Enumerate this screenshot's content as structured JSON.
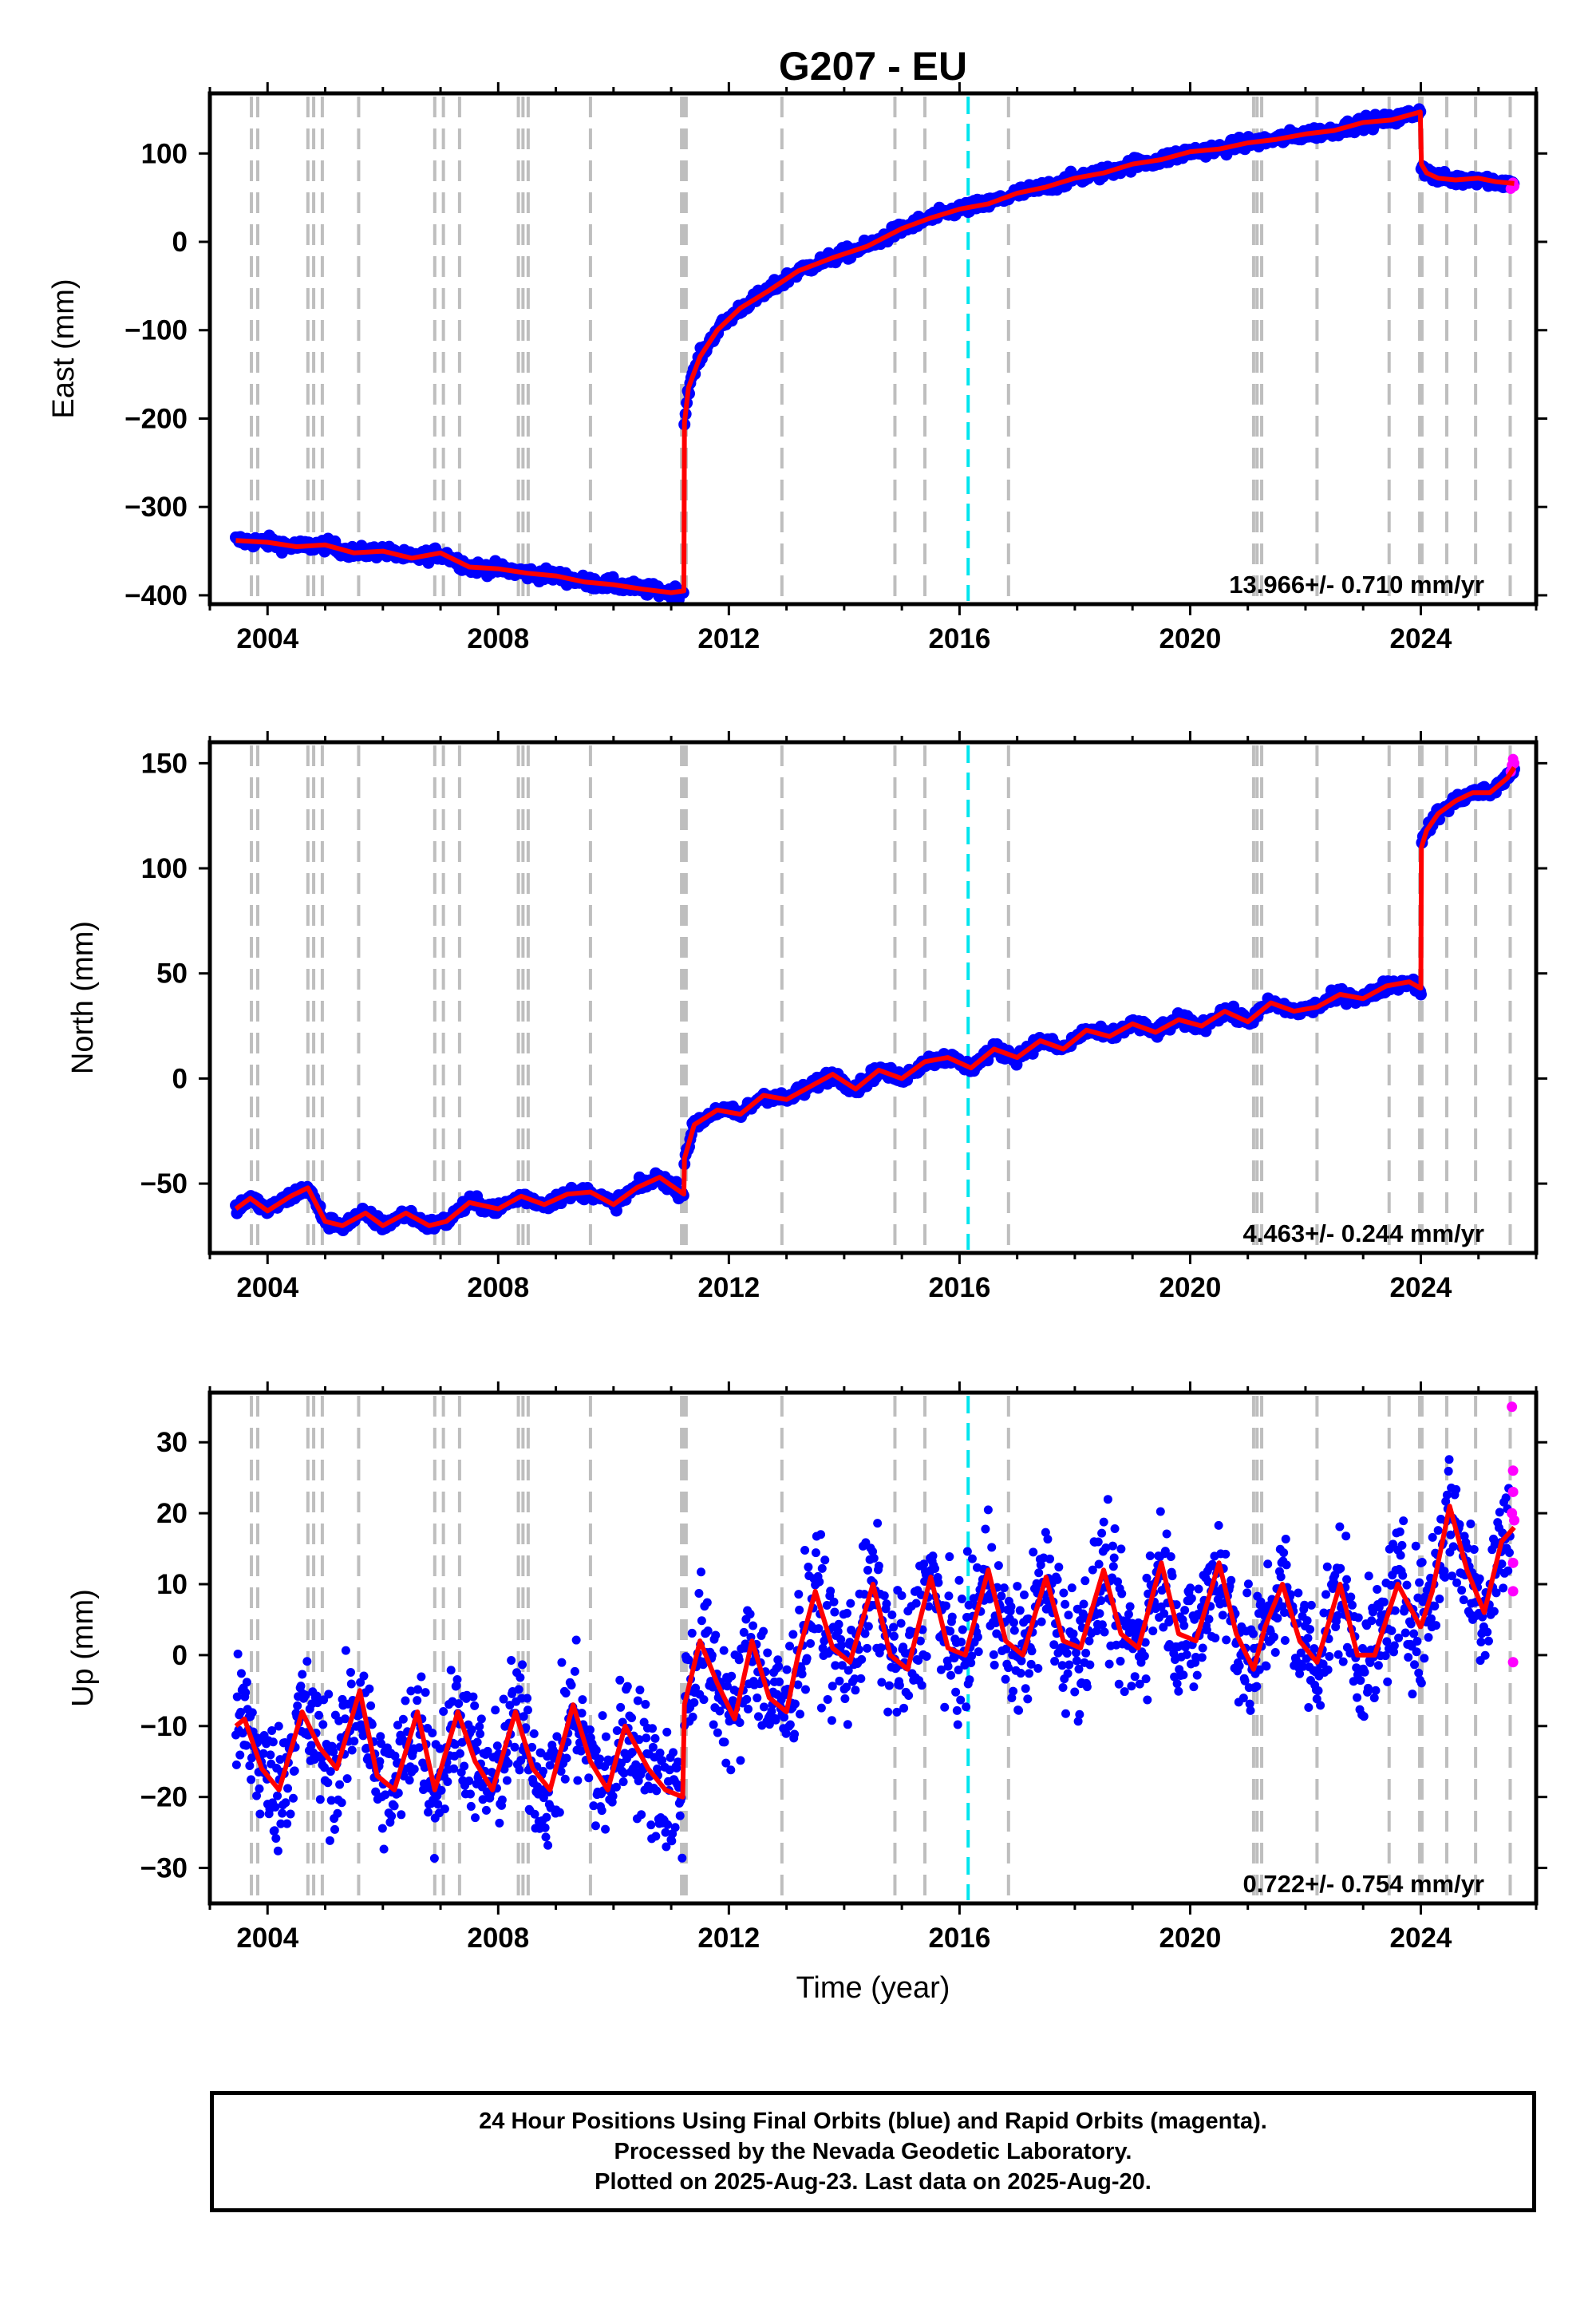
{
  "title": "G207 - EU",
  "footer": {
    "line1": "24 Hour Positions Using Final Orbits (blue) and Rapid Orbits (magenta).",
    "line2": "Processed by the Nevada Geodetic Laboratory.",
    "line3": "Plotted on 2025-Aug-23. Last data on 2025-Aug-20."
  },
  "colors": {
    "final_orbits": "#0000ff",
    "rapid_orbits": "#ff00ff",
    "model_fit": "#ff0000",
    "event_line": "#bebebe",
    "special_event_line": "#00e5ee"
  },
  "chart_data": [
    {
      "type": "scatter",
      "panel": "east",
      "title": "G207 - EU",
      "ylabel": "East (mm)",
      "xlabel": "",
      "xlim": [
        2003.0,
        2026.0
      ],
      "ylim": [
        -410,
        168
      ],
      "xticks": [
        2004,
        2008,
        2012,
        2016,
        2020,
        2024
      ],
      "yticks": [
        -400,
        -300,
        -200,
        -100,
        0,
        100
      ],
      "rate_text": "13.966+/- 0.710 mm/yr",
      "event_lines": [
        2003.72,
        2003.83,
        2004.7,
        2004.8,
        2004.95,
        2005.58,
        2006.9,
        2007.05,
        2007.33,
        2008.35,
        2008.43,
        2008.52,
        2009.6,
        2011.18,
        2011.22,
        2011.26,
        2012.92,
        2014.88,
        2015.4,
        2016.85,
        2021.1,
        2021.16,
        2021.24,
        2022.2,
        2023.45,
        2023.98,
        2024.02,
        2024.45,
        2024.95,
        2025.55
      ],
      "special_event_lines": [
        2016.15
      ],
      "model_series": [
        {
          "name": "trend",
          "x": [
            2003.45,
            2004.0,
            2004.5,
            2005.0,
            2005.5,
            2006.0,
            2006.5,
            2007.0,
            2007.5,
            2008.0,
            2008.5,
            2009.0,
            2009.5,
            2010.0,
            2010.5,
            2011.0,
            2011.22
          ],
          "y": [
            -338,
            -340,
            -345,
            -343,
            -352,
            -350,
            -358,
            -352,
            -368,
            -370,
            -375,
            -378,
            -385,
            -388,
            -393,
            -397,
            -395
          ]
        },
        {
          "name": "postseismic",
          "x": [
            2011.23,
            2011.3,
            2011.5,
            2011.8,
            2012.2,
            2012.7,
            2013.2,
            2013.8,
            2014.4,
            2015.0,
            2015.5,
            2016.0,
            2016.5,
            2017.0,
            2017.5,
            2018.0,
            2018.5,
            2019.0,
            2019.5,
            2020.0,
            2020.5,
            2021.0,
            2021.5,
            2022.0,
            2022.5,
            2023.0,
            2023.5,
            2023.99
          ],
          "y": [
            -205,
            -165,
            -130,
            -100,
            -75,
            -55,
            -33,
            -18,
            -5,
            15,
            27,
            37,
            43,
            55,
            62,
            72,
            78,
            88,
            93,
            102,
            105,
            112,
            116,
            122,
            126,
            135,
            138,
            147
          ]
        },
        {
          "name": "post2024",
          "x": [
            2024.01,
            2024.1,
            2024.3,
            2024.6,
            2025.0,
            2025.3,
            2025.62
          ],
          "y": [
            88,
            78,
            72,
            70,
            72,
            68,
            66
          ]
        }
      ],
      "rapid_points": {
        "x": [
          2025.56,
          2025.58,
          2025.6,
          2025.62
        ],
        "y": [
          60,
          64,
          67,
          63
        ]
      }
    },
    {
      "type": "scatter",
      "panel": "north",
      "ylabel": "North (mm)",
      "xlabel": "",
      "xlim": [
        2003.0,
        2026.0
      ],
      "ylim": [
        -83,
        160
      ],
      "xticks": [
        2004,
        2008,
        2012,
        2016,
        2020,
        2024
      ],
      "yticks": [
        -50,
        0,
        50,
        100,
        150
      ],
      "rate_text": "4.463+/- 0.244 mm/yr",
      "event_lines": [
        2003.72,
        2003.83,
        2004.7,
        2004.8,
        2004.95,
        2005.58,
        2006.9,
        2007.05,
        2007.33,
        2008.35,
        2008.43,
        2008.52,
        2009.6,
        2011.18,
        2011.22,
        2011.26,
        2012.92,
        2014.88,
        2015.4,
        2016.85,
        2021.1,
        2021.16,
        2021.24,
        2022.2,
        2023.45,
        2023.98,
        2024.02,
        2024.45,
        2024.95,
        2025.55
      ],
      "special_event_lines": [
        2016.15
      ],
      "model_series": [
        {
          "name": "pre2011",
          "x": [
            2003.45,
            2003.7,
            2004.0,
            2004.4,
            2004.7,
            2005.0,
            2005.3,
            2005.7,
            2006.0,
            2006.4,
            2006.8,
            2007.1,
            2007.5,
            2008.0,
            2008.4,
            2008.8,
            2009.2,
            2009.6,
            2010.0,
            2010.4,
            2010.8,
            2011.22
          ],
          "y": [
            -62,
            -57,
            -63,
            -56,
            -52,
            -68,
            -70,
            -64,
            -70,
            -64,
            -70,
            -68,
            -59,
            -62,
            -56,
            -60,
            -55,
            -54,
            -60,
            -52,
            -47,
            -55
          ]
        },
        {
          "name": "2011-2024",
          "x": [
            2011.23,
            2011.4,
            2011.8,
            2012.2,
            2012.6,
            2013.0,
            2013.4,
            2013.8,
            2014.2,
            2014.6,
            2015.0,
            2015.4,
            2015.8,
            2016.2,
            2016.6,
            2017.0,
            2017.4,
            2017.8,
            2018.2,
            2018.6,
            2019.0,
            2019.4,
            2019.8,
            2020.2,
            2020.6,
            2021.0,
            2021.4,
            2021.8,
            2022.2,
            2022.6,
            2023.0,
            2023.4,
            2023.8,
            2023.99
          ],
          "y": [
            -38,
            -22,
            -15,
            -17,
            -8,
            -10,
            -4,
            2,
            -5,
            4,
            0,
            8,
            10,
            5,
            14,
            10,
            18,
            14,
            23,
            20,
            26,
            22,
            28,
            25,
            32,
            27,
            36,
            32,
            34,
            40,
            38,
            44,
            46,
            43
          ]
        },
        {
          "name": "post2024",
          "x": [
            2024.0,
            2024.01,
            2024.1,
            2024.3,
            2024.6,
            2024.9,
            2025.2,
            2025.5,
            2025.62
          ],
          "y": [
            43,
            110,
            118,
            126,
            132,
            136,
            136,
            143,
            148
          ]
        }
      ],
      "rapid_points": {
        "x": [
          2025.56,
          2025.58,
          2025.6,
          2025.62
        ],
        "y": [
          146,
          149,
          152,
          150
        ]
      }
    },
    {
      "type": "scatter",
      "panel": "up",
      "ylabel": "Up (mm)",
      "xlabel": "Time (year)",
      "xlim": [
        2003.0,
        2026.0
      ],
      "ylim": [
        -35,
        37
      ],
      "xticks": [
        2004,
        2008,
        2012,
        2016,
        2020,
        2024
      ],
      "yticks": [
        -30,
        -20,
        -10,
        0,
        10,
        20,
        30
      ],
      "rate_text": "0.722+/- 0.754 mm/yr",
      "event_lines": [
        2003.72,
        2003.83,
        2004.7,
        2004.8,
        2004.95,
        2005.58,
        2006.9,
        2007.05,
        2007.33,
        2008.35,
        2008.43,
        2008.52,
        2009.6,
        2011.18,
        2011.22,
        2011.26,
        2012.92,
        2014.88,
        2015.4,
        2016.85,
        2021.1,
        2021.16,
        2021.24,
        2022.2,
        2023.45,
        2023.98,
        2024.02,
        2024.45,
        2024.95,
        2025.55
      ],
      "special_event_lines": [
        2016.15
      ],
      "scatter_spread_mm": 4.5,
      "model_series": [
        {
          "name": "pre2011",
          "x": [
            2003.45,
            2003.6,
            2003.9,
            2004.2,
            2004.6,
            2004.9,
            2005.2,
            2005.6,
            2005.9,
            2006.2,
            2006.6,
            2006.9,
            2007.3,
            2007.6,
            2007.9,
            2008.3,
            2008.6,
            2008.9,
            2009.3,
            2009.6,
            2009.9,
            2010.2,
            2010.6,
            2010.9,
            2011.2
          ],
          "y": [
            -10,
            -9,
            -16,
            -19,
            -8,
            -13,
            -16,
            -5,
            -17,
            -19,
            -8,
            -19,
            -8,
            -15,
            -19,
            -8,
            -16,
            -19,
            -7,
            -15,
            -19,
            -10,
            -16,
            -19,
            -20
          ]
        },
        {
          "name": "2011-2024",
          "x": [
            2011.23,
            2011.5,
            2011.8,
            2012.1,
            2012.4,
            2012.7,
            2013.0,
            2013.2,
            2013.5,
            2013.8,
            2014.1,
            2014.5,
            2014.8,
            2015.1,
            2015.5,
            2015.8,
            2016.1,
            2016.5,
            2016.8,
            2017.1,
            2017.5,
            2017.8,
            2018.1,
            2018.5,
            2018.8,
            2019.1,
            2019.5,
            2019.8,
            2020.1,
            2020.5,
            2020.8,
            2021.1,
            2021.3,
            2021.6,
            2021.9,
            2022.2,
            2022.6,
            2022.9,
            2023.2,
            2023.6,
            2023.99
          ],
          "y": [
            -7,
            2,
            -4,
            -9,
            2,
            -6,
            -8,
            0,
            9,
            1,
            -1,
            10,
            0,
            -2,
            11,
            1,
            0,
            12,
            2,
            0,
            11,
            2,
            1,
            12,
            3,
            1,
            13,
            3,
            2,
            13,
            3,
            -2,
            4,
            10,
            2,
            -1,
            10,
            0,
            0,
            10,
            4
          ]
        },
        {
          "name": "post2024",
          "x": [
            2024.0,
            2024.2,
            2024.5,
            2024.8,
            2025.1,
            2025.4,
            2025.62
          ],
          "y": [
            4,
            9,
            21,
            12,
            6,
            16,
            18
          ]
        }
      ],
      "rapid_points": {
        "x": [
          2025.58,
          2025.6,
          2025.6,
          2025.62,
          2025.6,
          2025.58,
          2025.6,
          2025.6
        ],
        "y": [
          35,
          26,
          23,
          19,
          13,
          20,
          -1,
          9
        ]
      }
    }
  ]
}
